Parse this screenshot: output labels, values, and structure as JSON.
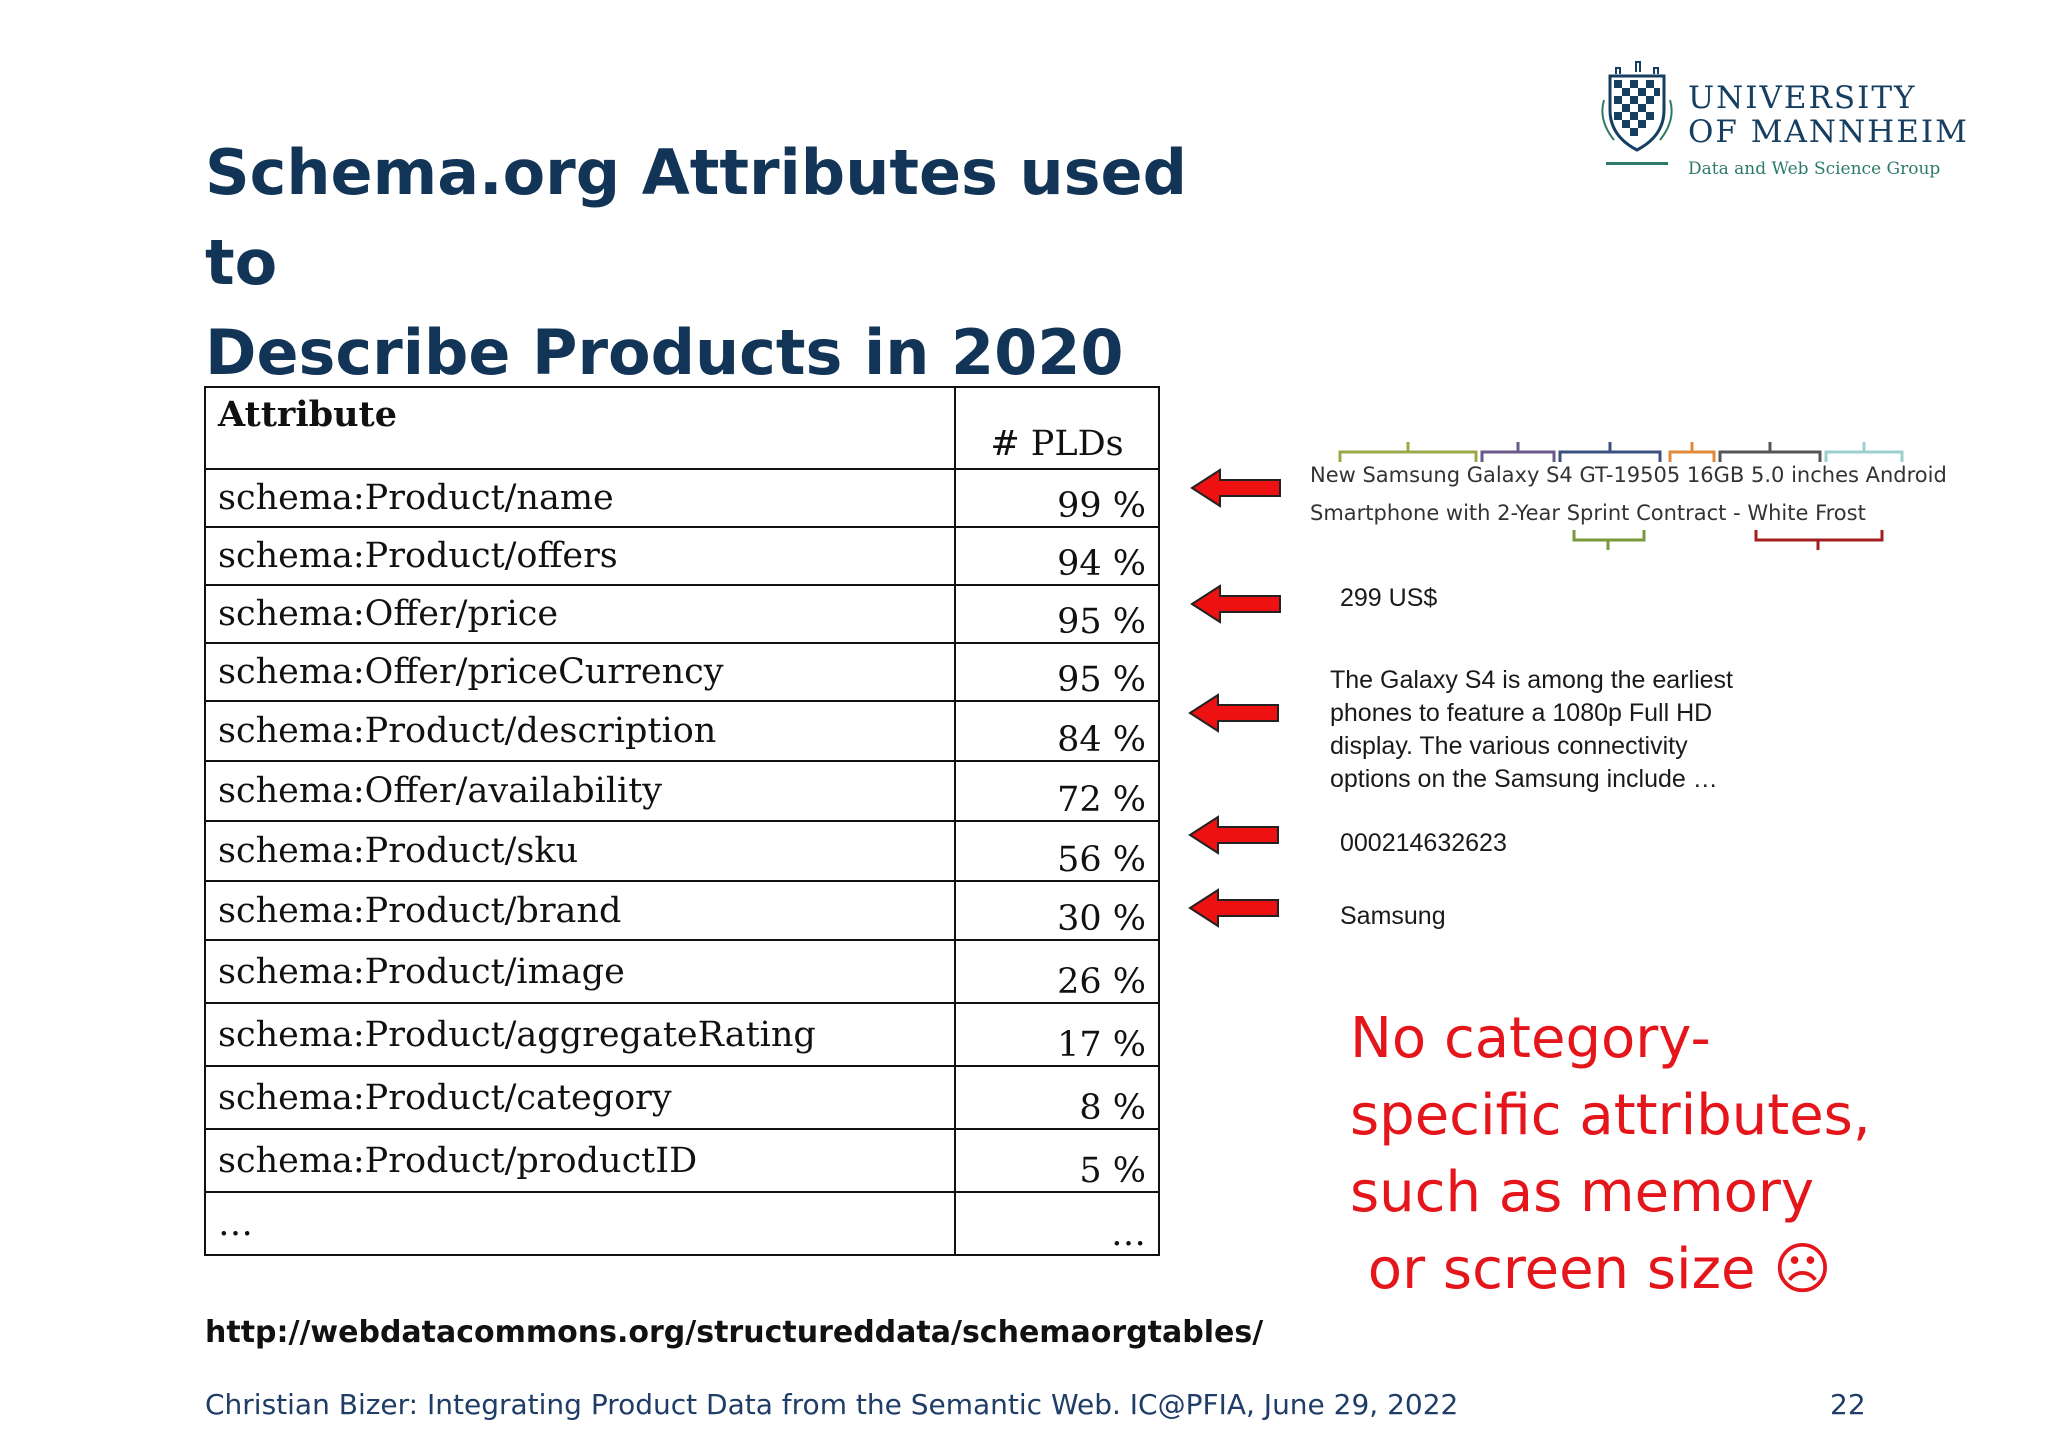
{
  "slide": {
    "title_line1": "Schema.org Attributes used to",
    "title_line2": "Describe Products in 2020"
  },
  "logo": {
    "line1": "UNIVERSITY",
    "line2": "OF MANNHEIM",
    "group": "Data and Web Science Group"
  },
  "table": {
    "headers": {
      "attribute": "Attribute",
      "plds": "# PLDs"
    },
    "rows": [
      {
        "attribute": "schema:Product/name",
        "plds": "99 %"
      },
      {
        "attribute": "schema:Product/offers",
        "plds": "94 %"
      },
      {
        "attribute": "schema:Offer/price",
        "plds": "95 %"
      },
      {
        "attribute": "schema:Offer/priceCurrency",
        "plds": "95 %"
      },
      {
        "attribute": "schema:Product/description",
        "plds": "84 %"
      },
      {
        "attribute": "schema:Offer/availability",
        "plds": "72 %"
      },
      {
        "attribute": "schema:Product/sku",
        "plds": "56 %"
      },
      {
        "attribute": "schema:Product/brand",
        "plds": "30 %"
      },
      {
        "attribute": "schema:Product/image",
        "plds": "26 %"
      },
      {
        "attribute": "schema:Product/aggregateRating",
        "plds": "17 %"
      },
      {
        "attribute": "schema:Product/category",
        "plds": "8 %"
      },
      {
        "attribute": "schema:Product/productID",
        "plds": "5 %"
      },
      {
        "attribute": "…",
        "plds": "…"
      }
    ]
  },
  "example": {
    "product_line1": "New Samsung Galaxy S4 GT-19505  16GB 5.0 inches Android",
    "product_line2": "Smartphone with 2-Year Sprint Contract - White Frost",
    "price": "299 US$",
    "description_lines": [
      "The Galaxy S4 is among the earliest",
      "phones to feature a 1080p Full HD",
      "display. The various connectivity",
      "options on the Samsung include …"
    ],
    "sku": "000214632623",
    "brand": "Samsung"
  },
  "note": {
    "line1": "No category-",
    "line2": "specific attributes,",
    "line3": "such as memory",
    "line4": " or screen size ☹"
  },
  "source_link": "http://webdatacommons.org/structureddata/schemaorgtables/",
  "footer": "Christian Bizer: Integrating Product Data from the Semantic Web. IC@PFIA, June 29, 2022",
  "page_number": "22",
  "colors": {
    "title": "#123456",
    "note": "#e4161b",
    "arrow": "#ee1111"
  }
}
